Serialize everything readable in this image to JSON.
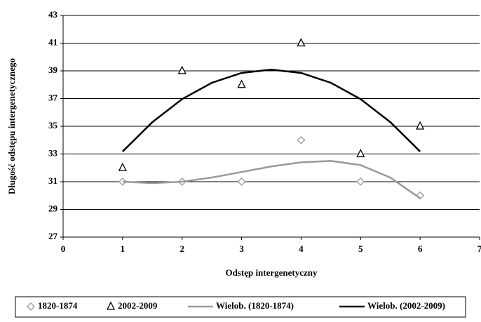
{
  "chart_data": {
    "type": "scatter",
    "xlabel": "Odstęp intergenetyczny",
    "ylabel": "Długość odstępu intergenetycznego",
    "xlim": [
      0,
      7
    ],
    "xticks": [
      0,
      1,
      2,
      3,
      4,
      5,
      6,
      7
    ],
    "ylim": [
      27,
      43
    ],
    "yticks": [
      27,
      29,
      31,
      33,
      35,
      37,
      39,
      41,
      43
    ],
    "grid": true,
    "legend": "bottom",
    "series": [
      {
        "name": "1820-1874",
        "kind": "marker",
        "marker": "diamond",
        "color": "#999999",
        "x": [
          1,
          2,
          3,
          4,
          5,
          6
        ],
        "values": [
          31,
          31,
          31,
          34,
          31,
          30
        ]
      },
      {
        "name": "2002-2009",
        "kind": "marker",
        "marker": "triangle",
        "color": "#000000",
        "x": [
          1,
          2,
          3,
          4,
          5,
          6
        ],
        "values": [
          32,
          39,
          38,
          41,
          33,
          35
        ]
      },
      {
        "name": "Wielob. (1820-1874)",
        "kind": "line",
        "color": "#999999",
        "x": [
          1,
          1.5,
          2,
          2.5,
          3,
          3.5,
          4,
          4.5,
          5,
          5.5,
          6
        ],
        "values": [
          31.0,
          30.9,
          31.0,
          31.3,
          31.7,
          32.1,
          32.4,
          32.5,
          32.2,
          31.3,
          29.8
        ]
      },
      {
        "name": "Wielob. (2002-2009)",
        "kind": "line",
        "color": "#000000",
        "x": [
          1,
          1.5,
          2,
          2.5,
          3,
          3.5,
          4,
          4.5,
          5,
          5.5,
          6
        ],
        "values": [
          33.18,
          35.3,
          36.96,
          38.14,
          38.85,
          39.09,
          38.85,
          38.14,
          36.96,
          35.3,
          33.18
        ]
      }
    ]
  }
}
